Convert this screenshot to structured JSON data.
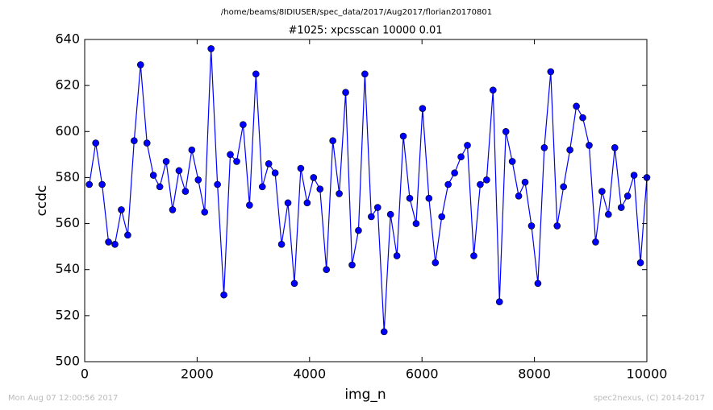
{
  "chart_data": {
    "type": "line",
    "title": "/home/beams/8IDIUSER/spec_data/2017/Aug2017/florian20170801",
    "subtitle": "#1025: xpcsscan 10000 0.01",
    "x_label": "img_n",
    "y_label": "ccdc",
    "footer_left": "Mon Aug 07 12:00:56 2017",
    "footer_right": "spec2nexus, (C) 2014-2017",
    "x": [
      82,
      196,
      310,
      424,
      538,
      652,
      766,
      880,
      994,
      1108,
      1222,
      1336,
      1450,
      1564,
      1678,
      1792,
      1906,
      2020,
      2134,
      2248,
      2362,
      2476,
      2590,
      2704,
      2818,
      2932,
      3046,
      3160,
      3274,
      3388,
      3502,
      3616,
      3730,
      3844,
      3958,
      4072,
      4186,
      4300,
      4414,
      4528,
      4642,
      4756,
      4870,
      4984,
      5098,
      5212,
      5326,
      5440,
      5554,
      5668,
      5782,
      5896,
      6010,
      6124,
      6238,
      6352,
      6466,
      6580,
      6694,
      6808,
      6922,
      7036,
      7150,
      7264,
      7378,
      7492,
      7606,
      7720,
      7834,
      7948,
      8062,
      8176,
      8290,
      8404,
      8518,
      8632,
      8746,
      8860,
      8974,
      9088,
      9202,
      9316,
      9430,
      9544,
      9658,
      9772,
      9886,
      10000
    ],
    "series": [
      {
        "color": "#0000ff",
        "values": [
          577,
          595,
          577,
          552,
          551,
          566,
          555,
          596,
          629,
          595,
          581,
          576,
          587,
          566,
          583,
          574,
          592,
          579,
          565,
          636,
          577,
          529,
          590,
          587,
          603,
          568,
          625,
          576,
          586,
          582,
          551,
          569,
          534,
          584,
          569,
          580,
          575,
          540,
          596,
          573,
          617,
          542,
          557,
          625,
          563,
          567,
          513,
          564,
          546,
          598,
          571,
          560,
          610,
          571,
          543,
          563,
          577,
          582,
          589,
          594,
          546,
          577,
          579,
          618,
          526,
          600,
          587,
          572,
          578,
          559,
          534,
          593,
          626,
          559,
          576,
          592,
          611,
          606,
          594,
          552,
          574,
          564,
          593,
          567,
          572,
          581,
          543,
          580
        ]
      }
    ],
    "xlim": [
      0,
      10000
    ],
    "xticks": [
      0,
      2000,
      4000,
      6000,
      8000,
      10000
    ],
    "ylim": [
      500,
      640
    ],
    "yticks": [
      500,
      520,
      540,
      560,
      580,
      600,
      620,
      640
    ],
    "grid": false
  }
}
